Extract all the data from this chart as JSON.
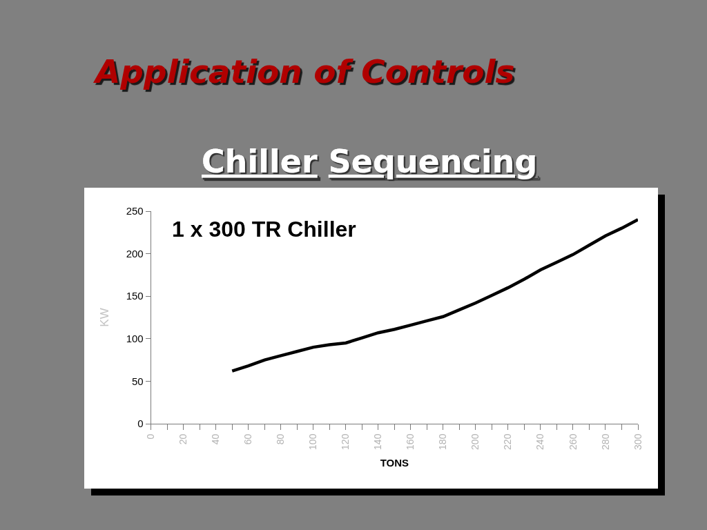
{
  "chart_data": {
    "type": "line",
    "title": "Application of Controls",
    "subtitle": "Chiller Sequencing",
    "xlabel": "TONS",
    "ylabel": "KW",
    "annotations": [
      "1 x 300 TR Chiller"
    ],
    "x": [
      50,
      60,
      70,
      80,
      90,
      100,
      110,
      120,
      130,
      140,
      150,
      160,
      170,
      180,
      190,
      200,
      210,
      220,
      230,
      240,
      250,
      260,
      270,
      280,
      290,
      300
    ],
    "series": [
      {
        "color": "#000000",
        "values": [
          62,
          68,
          75,
          80,
          85,
          90,
          93,
          95,
          101,
          107,
          111,
          116,
          121,
          126,
          134,
          142,
          151,
          160,
          170,
          181,
          190,
          199,
          210,
          221,
          230,
          240
        ]
      }
    ],
    "xlim": [
      0,
      300
    ],
    "xticks": [
      0,
      {
        "value": 10,
        "label": null
      },
      20,
      {
        "value": 30,
        "label": null
      },
      40,
      {
        "value": 50,
        "label": null
      },
      60,
      {
        "value": 70,
        "label": null
      },
      80,
      {
        "value": 90,
        "label": null
      },
      100,
      {
        "value": 110,
        "label": null
      },
      120,
      {
        "value": 130,
        "label": null
      },
      140,
      {
        "value": 150,
        "label": null
      },
      160,
      {
        "value": 170,
        "label": null
      },
      180,
      {
        "value": 190,
        "label": null
      },
      200,
      {
        "value": 210,
        "label": null
      },
      220,
      {
        "value": 230,
        "label": null
      },
      240,
      {
        "value": 250,
        "label": null
      },
      260,
      {
        "value": 270,
        "label": null
      },
      280,
      {
        "value": 290,
        "label": null
      },
      300
    ],
    "ylim": [
      0,
      250
    ],
    "yticks": [
      0,
      50,
      100,
      150,
      200,
      250
    ],
    "grid": false,
    "marker": "none",
    "line_style": "solid"
  }
}
